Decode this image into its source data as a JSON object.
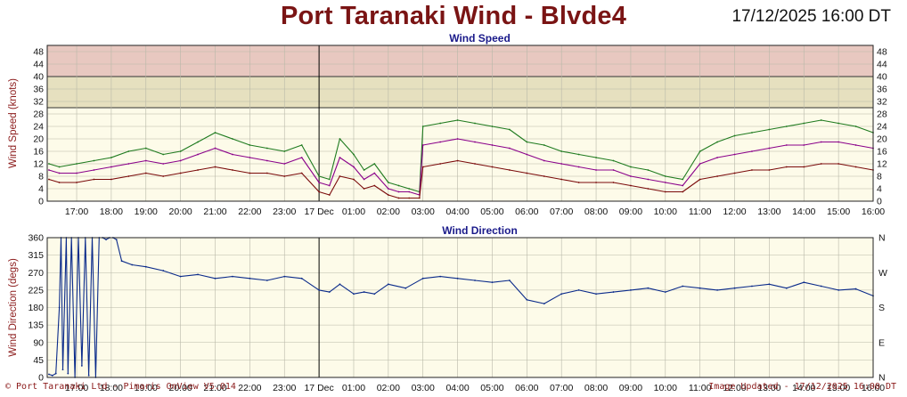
{
  "header": {
    "title": "Port Taranaki Wind - Blvde4",
    "timestamp": "17/12/2025 16:00 DT"
  },
  "footer": {
    "left": "© Port Taranaki Ltd - Pimaris OnView V5.014",
    "right": "Image Updated - 17/12/2025 16:00 DT"
  },
  "colors": {
    "background": "#fdfbe9",
    "band_high": "#e8c8c0",
    "band_mid": "#e6e0bf",
    "gust": "#1e7a1e",
    "mean": "#8a008a",
    "lull": "#7a0a0a",
    "direction": "#0a2a8a",
    "title": "#7a1414",
    "axis_label": "#8b1a1a",
    "subtitle": "#1a1a8a"
  },
  "chart_data": [
    {
      "type": "line",
      "title": "Wind Speed",
      "ylabel": "Wind Speed (knots)",
      "ylim": [
        0,
        50
      ],
      "yticks": [
        0,
        4,
        8,
        12,
        16,
        20,
        24,
        28,
        32,
        36,
        40,
        44,
        48
      ],
      "bands": [
        {
          "from": 30,
          "to": 40,
          "color": "#e6e0bf"
        },
        {
          "from": 40,
          "to": 50,
          "color": "#e8c8c0"
        }
      ],
      "xlim": [
        16.15,
        40
      ],
      "day_boundary": 24,
      "x_tick_hours": [
        17,
        18,
        19,
        20,
        21,
        22,
        23,
        24,
        25,
        26,
        27,
        28,
        29,
        30,
        31,
        32,
        33,
        34,
        35,
        36,
        37,
        38,
        39,
        40
      ],
      "x_tick_labels": [
        "17:00",
        "18:00",
        "19:00",
        "20:00",
        "21:00",
        "22:00",
        "23:00",
        "17 Dec",
        "01:00",
        "02:00",
        "03:00",
        "04:00",
        "05:00",
        "06:00",
        "07:00",
        "08:00",
        "09:00",
        "10:00",
        "11:00",
        "12:00",
        "13:00",
        "14:00",
        "15:00",
        "16:00"
      ],
      "grid": true,
      "legend": "none",
      "x": [
        16.2,
        16.5,
        17.0,
        17.5,
        18.0,
        18.5,
        19.0,
        19.5,
        20.0,
        20.5,
        21.0,
        21.5,
        22.0,
        22.5,
        23.0,
        23.5,
        24.0,
        24.3,
        24.6,
        25.0,
        25.3,
        25.6,
        26.0,
        26.3,
        26.6,
        26.9,
        27.0,
        27.5,
        28.0,
        28.5,
        29.0,
        29.5,
        30.0,
        30.5,
        31.0,
        31.5,
        32.0,
        32.5,
        33.0,
        33.5,
        34.0,
        34.5,
        35.0,
        35.5,
        36.0,
        36.5,
        37.0,
        37.5,
        38.0,
        38.5,
        39.0,
        39.5,
        40.0
      ],
      "series": [
        {
          "values": [
            12,
            11,
            12,
            13,
            14,
            16,
            17,
            15,
            16,
            19,
            22,
            20,
            18,
            17,
            16,
            18,
            8,
            7,
            20,
            15,
            10,
            12,
            6,
            5,
            4,
            3,
            24,
            25,
            26,
            25,
            24,
            23,
            19,
            18,
            16,
            15,
            14,
            13,
            11,
            10,
            8,
            7,
            16,
            19,
            21,
            22,
            23,
            24,
            25,
            26,
            25,
            24,
            22
          ]
        },
        {
          "values": [
            10,
            9,
            9,
            10,
            11,
            12,
            13,
            12,
            13,
            15,
            17,
            15,
            14,
            13,
            12,
            14,
            6,
            5,
            14,
            11,
            7,
            9,
            4,
            3,
            3,
            2,
            18,
            19,
            20,
            19,
            18,
            17,
            15,
            13,
            12,
            11,
            10,
            10,
            8,
            7,
            6,
            5,
            12,
            14,
            15,
            16,
            17,
            18,
            18,
            19,
            19,
            18,
            17
          ]
        },
        {
          "values": [
            7,
            6,
            6,
            7,
            7,
            8,
            9,
            8,
            9,
            10,
            11,
            10,
            9,
            9,
            8,
            9,
            3,
            2,
            8,
            7,
            4,
            5,
            2,
            1,
            1,
            1,
            11,
            12,
            13,
            12,
            11,
            10,
            9,
            8,
            7,
            6,
            6,
            6,
            5,
            4,
            3,
            3,
            7,
            8,
            9,
            10,
            10,
            11,
            11,
            12,
            12,
            11,
            10
          ]
        }
      ]
    },
    {
      "type": "line",
      "title": "Wind Direction",
      "ylabel": "Wind Direction (degs)",
      "ylim": [
        0,
        360
      ],
      "yticks": [
        0,
        45,
        90,
        135,
        180,
        225,
        270,
        315,
        360
      ],
      "right_labels": [
        {
          "value": 0,
          "label": "N"
        },
        {
          "value": 90,
          "label": "E"
        },
        {
          "value": 180,
          "label": "S"
        },
        {
          "value": 270,
          "label": "W"
        },
        {
          "value": 360,
          "label": "N"
        }
      ],
      "xlim": [
        16.15,
        40
      ],
      "day_boundary": 24,
      "x_tick_hours": [
        17,
        18,
        19,
        20,
        21,
        22,
        23,
        24,
        25,
        26,
        27,
        28,
        29,
        30,
        31,
        32,
        33,
        34,
        35,
        36,
        37,
        38,
        39,
        40
      ],
      "x_tick_labels": [
        "17:00",
        "18:00",
        "19:00",
        "20:00",
        "21:00",
        "22:00",
        "23:00",
        "17 Dec",
        "01:00",
        "02:00",
        "03:00",
        "04:00",
        "05:00",
        "06:00",
        "07:00",
        "08:00",
        "09:00",
        "10:00",
        "11:00",
        "12:00",
        "13:00",
        "14:00",
        "15:00",
        "16:00"
      ],
      "grid": true,
      "legend": "none",
      "x": [
        16.2,
        16.3,
        16.4,
        16.5,
        16.55,
        16.6,
        16.7,
        16.75,
        16.85,
        16.95,
        17.05,
        17.15,
        17.25,
        17.35,
        17.45,
        17.55,
        17.65,
        17.75,
        17.85,
        17.95,
        18.05,
        18.15,
        18.3,
        18.6,
        19.0,
        19.5,
        20.0,
        20.5,
        21.0,
        21.5,
        22.0,
        22.5,
        23.0,
        23.5,
        24.0,
        24.3,
        24.6,
        25.0,
        25.3,
        25.6,
        26.0,
        26.5,
        27.0,
        27.5,
        28.0,
        28.5,
        29.0,
        29.5,
        30.0,
        30.5,
        31.0,
        31.5,
        32.0,
        32.5,
        33.0,
        33.5,
        34.0,
        34.5,
        35.0,
        35.5,
        36.0,
        36.5,
        37.0,
        37.5,
        38.0,
        38.5,
        39.0,
        39.5,
        40.0
      ],
      "values": [
        8,
        5,
        10,
        180,
        360,
        20,
        360,
        10,
        360,
        0,
        360,
        30,
        360,
        5,
        360,
        0,
        360,
        360,
        355,
        360,
        360,
        355,
        300,
        290,
        285,
        275,
        260,
        265,
        255,
        260,
        255,
        250,
        260,
        255,
        225,
        220,
        240,
        215,
        220,
        215,
        240,
        230,
        255,
        260,
        255,
        250,
        245,
        250,
        200,
        190,
        215,
        225,
        215,
        220,
        225,
        230,
        220,
        235,
        230,
        225,
        230,
        235,
        240,
        230,
        245,
        235,
        225,
        228,
        210
      ]
    }
  ]
}
